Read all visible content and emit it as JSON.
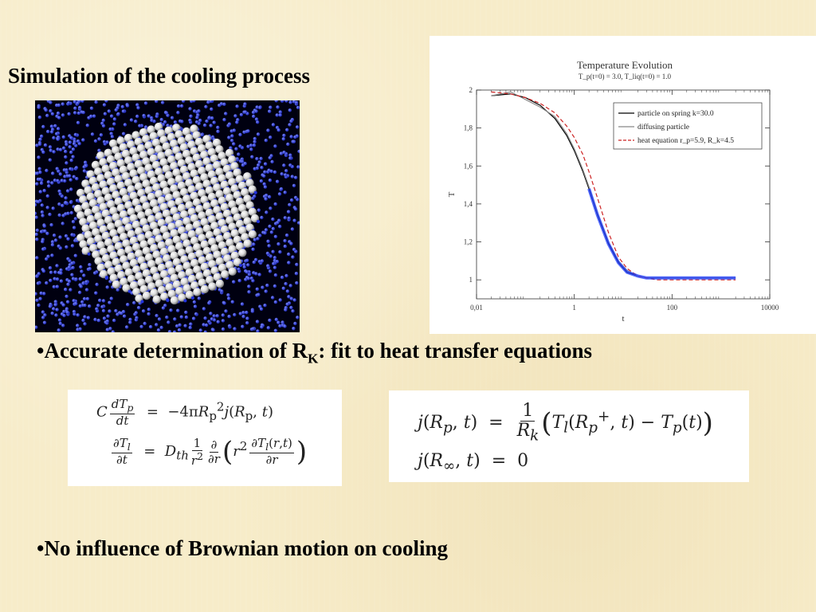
{
  "title": "Simulation of the cooling process",
  "bullet1": {
    "text_prefix": "•Accurate determination of R",
    "sub": "K",
    "text_suffix": ": fit to heat transfer equations"
  },
  "bullet2": {
    "text": "•No influence of Brownian motion on cooling"
  },
  "colors": {
    "background": "#f7ecc9",
    "particles": "#1e2fd6",
    "sphere": "#e6e6e6",
    "curve_red": "#cc2222"
  },
  "equations_left": {
    "line1_lhs": "C dT_p/dt",
    "line1_rhs": "−4πR_p² j(R_p, t)",
    "line2_lhs": "∂T_l/∂t",
    "line2_rhs": "D_th (1/r²) ∂/∂r ( r² ∂T_l(r,t)/∂r )"
  },
  "equations_right": {
    "line1": "j(R_p, t) = (1/R_k)(T_l(R_p⁺, t) − T_p(t))",
    "line2": "j(R_∞, t) = 0"
  },
  "chart_data": {
    "type": "line",
    "title": "Temperature Evolution",
    "subtitle": "T_p(t=0) = 3.0, T_liq(t=0) = 1.0",
    "xlabel": "t",
    "ylabel": "T",
    "xscale": "log",
    "xlim": [
      0.01,
      10000
    ],
    "ylim": [
      0.9,
      2.0
    ],
    "xticks": [
      "0,01",
      "1",
      "100",
      "10000"
    ],
    "yticks": [
      "1",
      "1,2",
      "1,4",
      "1,6",
      "1,8",
      "2"
    ],
    "legend_position": "top-right",
    "series": [
      {
        "name": "particle on spring k=30.0",
        "color": "#000000",
        "dash": "solid",
        "x": [
          0.02,
          0.05,
          0.1,
          0.2,
          0.4,
          0.7,
          1,
          1.5,
          2,
          3,
          5,
          8,
          12,
          20,
          30,
          50,
          100,
          300,
          1000,
          2000
        ],
        "y": [
          1.97,
          1.98,
          1.96,
          1.92,
          1.85,
          1.76,
          1.68,
          1.57,
          1.48,
          1.34,
          1.19,
          1.09,
          1.04,
          1.02,
          1.01,
          1.01,
          1.01,
          1.01,
          1.01,
          1.01
        ]
      },
      {
        "name": "diffusing particle",
        "color": "#888888",
        "dash": "solid",
        "x": [
          0.02,
          0.05,
          0.1,
          0.2,
          0.4,
          0.7,
          1,
          1.5,
          2,
          3,
          5,
          8,
          12,
          20,
          30,
          50,
          100,
          300,
          1000,
          2000
        ],
        "y": [
          1.97,
          1.99,
          1.95,
          1.91,
          1.86,
          1.77,
          1.69,
          1.58,
          1.49,
          1.35,
          1.2,
          1.1,
          1.05,
          1.02,
          1.01,
          1.01,
          1.01,
          1.01,
          1.01,
          1.01
        ]
      },
      {
        "name": "heat equation r_p=5.9, R_k=4.5",
        "color": "#cc2222",
        "dash": "dashed",
        "x": [
          0.02,
          0.05,
          0.1,
          0.2,
          0.4,
          0.7,
          1,
          1.5,
          2,
          3,
          5,
          8,
          12,
          20,
          30,
          50,
          100,
          300,
          1000,
          2000
        ],
        "y": [
          1.99,
          1.98,
          1.96,
          1.93,
          1.88,
          1.81,
          1.75,
          1.66,
          1.57,
          1.43,
          1.25,
          1.12,
          1.06,
          1.02,
          1.01,
          1.0,
          1.0,
          1.0,
          1.0,
          1.0
        ]
      },
      {
        "name": "",
        "color": "#1e3cff",
        "dash": "noisy",
        "x": [
          2,
          3,
          5,
          8,
          12,
          20,
          30,
          50,
          100,
          300,
          1000,
          2000
        ],
        "y": [
          1.48,
          1.34,
          1.19,
          1.09,
          1.04,
          1.02,
          1.01,
          1.01,
          1.01,
          1.01,
          1.01,
          1.01
        ]
      }
    ]
  }
}
